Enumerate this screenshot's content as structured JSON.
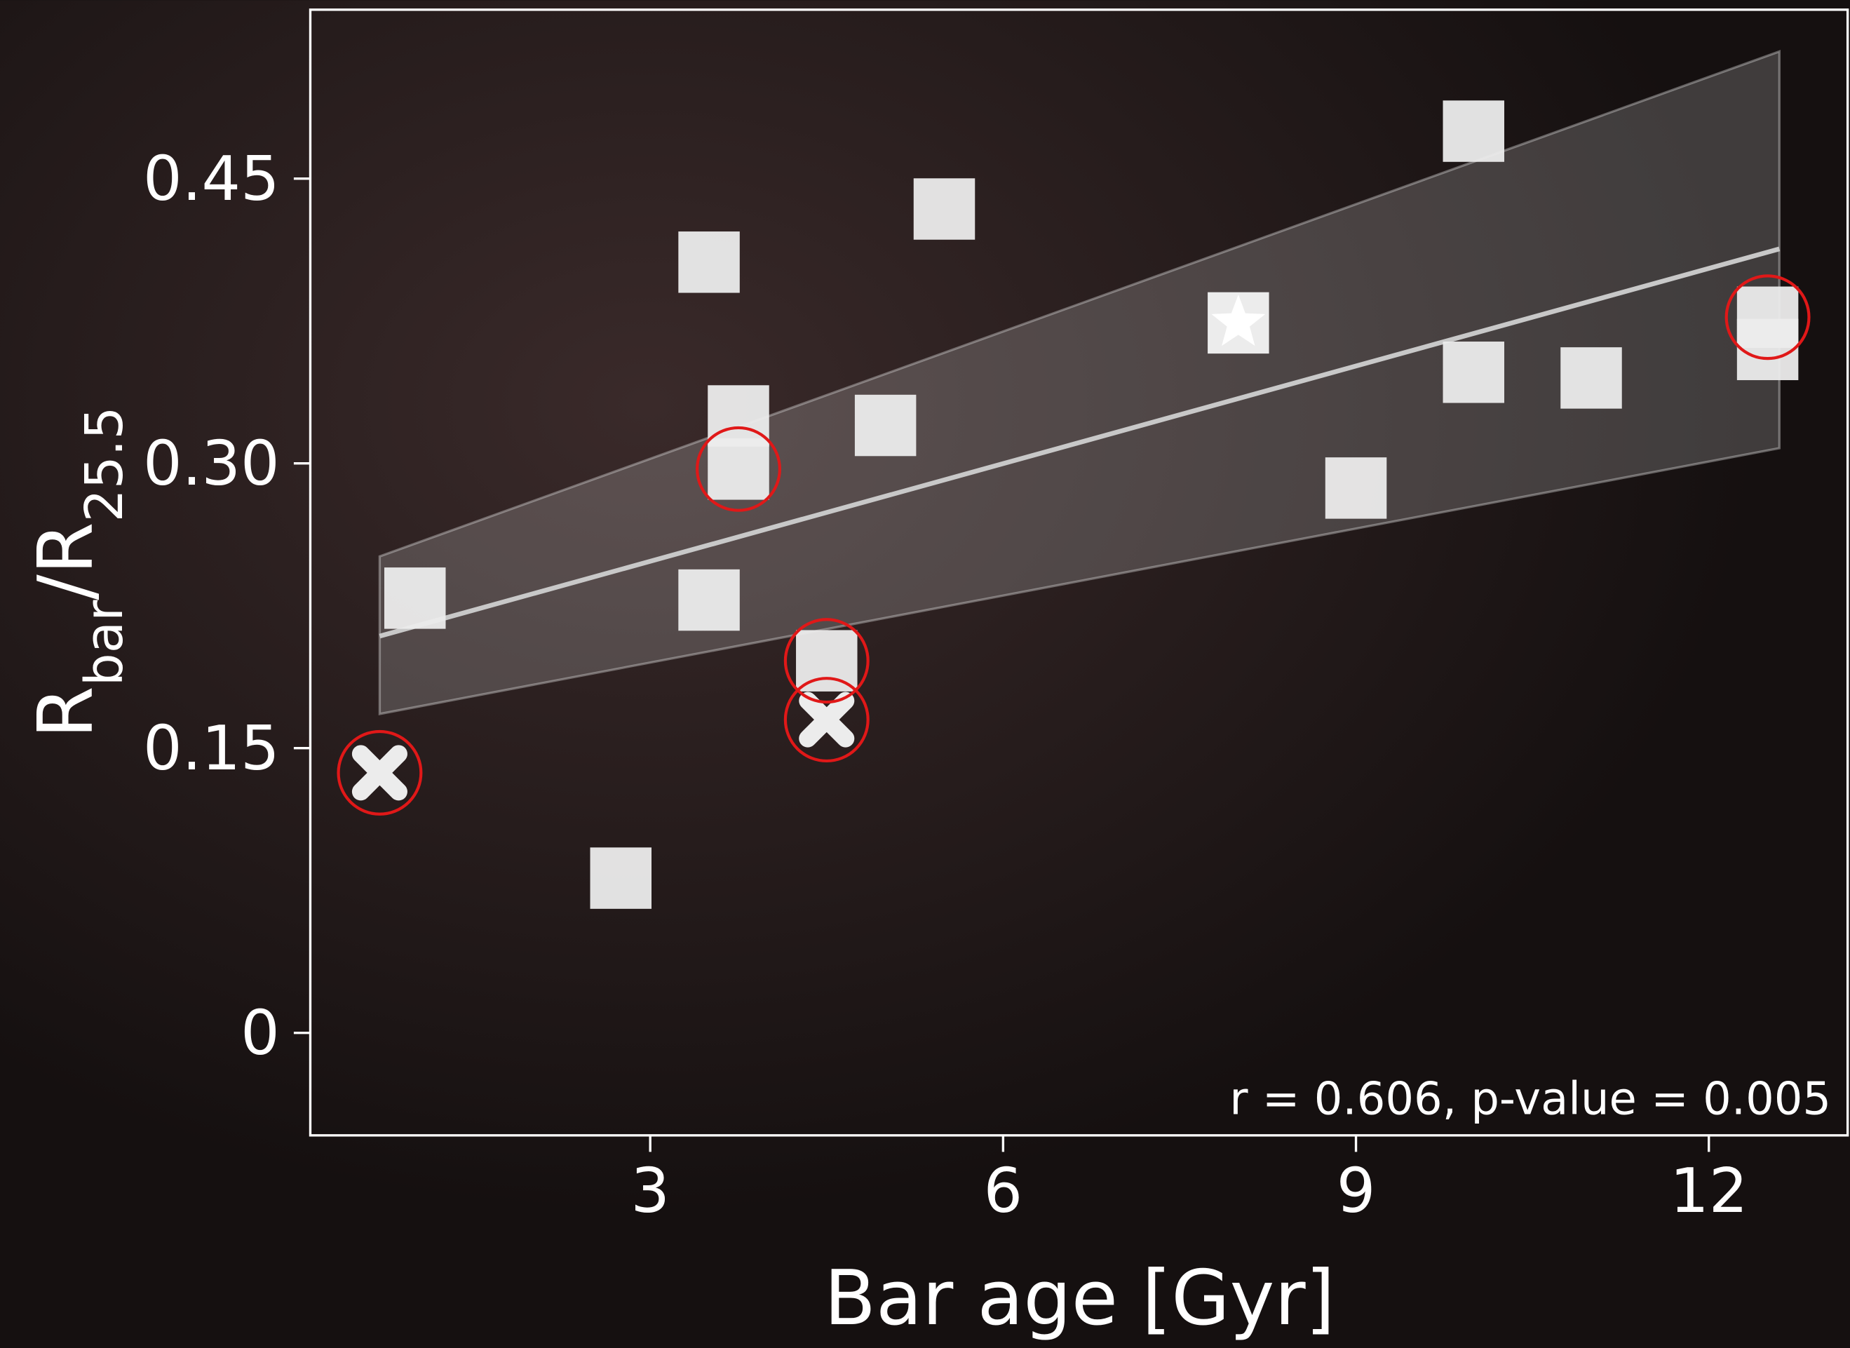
{
  "chart_data": {
    "type": "scatter",
    "xlabel": "Bar age [Gyr]",
    "ylabel_parts": [
      "R",
      "bar",
      "/R",
      "25.5"
    ],
    "annotation": "r = 0.606, p-value = 0.005",
    "xlim": [
      0.11,
      13.18
    ],
    "ylim": [
      -0.054,
      0.539
    ],
    "xticks": [
      3,
      6,
      9,
      12
    ],
    "yticks": [
      0,
      0.15,
      {
        "value": 0.3,
        "label": "0.30"
      },
      0.45
    ],
    "fit": {
      "color": "#c8c8c8",
      "x": [
        0.7,
        12.6
      ],
      "y": [
        0.209,
        0.413
      ],
      "band_lower": [
        0.168,
        0.308
      ],
      "band_upper": [
        0.251,
        0.517
      ]
    },
    "series": [
      {
        "marker": "square",
        "color": "#ececec",
        "x": [
          1.0,
          2.75,
          3.5,
          3.5,
          3.75,
          3.75,
          4.5,
          5.0,
          5.5,
          9.0,
          10.0,
          10.0,
          11.0,
          12.5,
          12.5
        ],
        "y": [
          0.229,
          0.0815,
          0.406,
          0.228,
          0.325,
          0.297,
          0.196,
          0.32,
          0.434,
          0.287,
          0.475,
          0.348,
          0.345,
          0.377,
          0.36
        ]
      },
      {
        "marker": "star",
        "color": "#ececec",
        "x": [
          8.0
        ],
        "y": [
          0.374
        ]
      },
      {
        "marker": "cross",
        "color": "#ececec",
        "x": [
          0.7,
          4.5
        ],
        "y": [
          0.137,
          0.165
        ]
      },
      {
        "marker": "circle",
        "color": "#e01818",
        "x": [
          0.7,
          3.75,
          4.5,
          4.5,
          12.5
        ],
        "y": [
          0.137,
          0.297,
          0.196,
          0.165,
          0.377
        ]
      }
    ]
  }
}
